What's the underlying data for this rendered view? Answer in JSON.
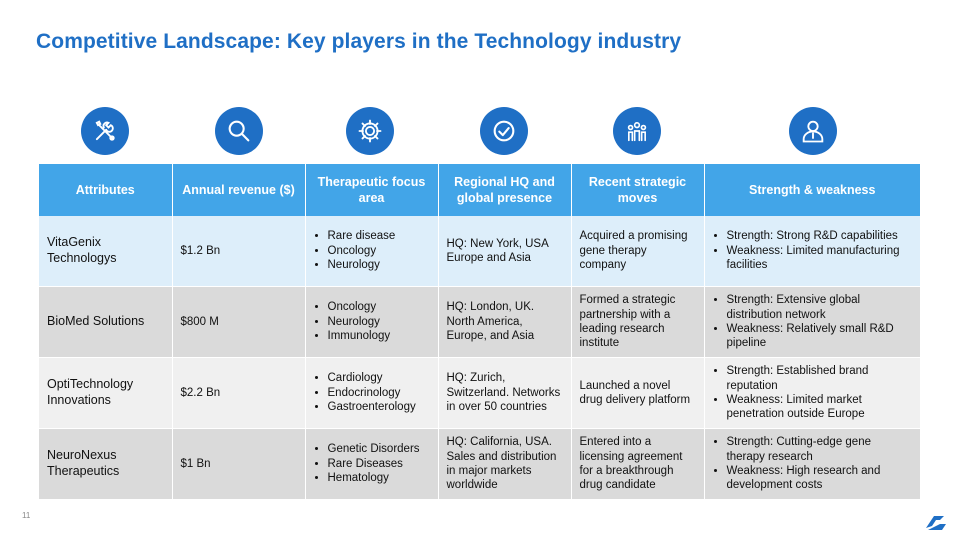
{
  "title": "Competitive Landscape: Key players in the Technology industry",
  "icons": [
    "tools-icon",
    "search-icon",
    "gear-icon",
    "check-circle-icon",
    "team-icon",
    "user-icon"
  ],
  "colors": {
    "accent": "#1f6fc5",
    "header": "#42a5e8",
    "row_blue": "#ddeefa",
    "row_gray": "#dadada",
    "row_light": "#f0f0f0"
  },
  "table": {
    "headers": [
      "Attributes",
      "Annual revenue ($)",
      "Therapeutic focus area",
      "Regional HQ and global presence",
      "Recent strategic moves",
      "Strength & weakness"
    ],
    "rows": [
      {
        "company": "VitaGenix Technologys",
        "revenue": "$1.2 Bn",
        "focus": [
          "Rare disease",
          "Oncology",
          "Neurology"
        ],
        "hq": "HQ: New York, USA Europe and Asia",
        "moves": "Acquired a promising gene therapy company",
        "sw": [
          "Strength: Strong R&D capabilities",
          "Weakness: Limited manufacturing facilities"
        ]
      },
      {
        "company": "BioMed Solutions",
        "revenue": "$800 M",
        "focus": [
          "Oncology",
          "Neurology",
          "Immunology"
        ],
        "hq": "HQ: London, UK. North America, Europe, and Asia",
        "moves": "Formed a strategic partnership with a leading research institute",
        "sw": [
          "Strength: Extensive global distribution network",
          "Weakness: Relatively small R&D pipeline"
        ]
      },
      {
        "company": "OptiTechnology Innovations",
        "revenue": "$2.2 Bn",
        "focus": [
          "Cardiology",
          "Endocrinology",
          "Gastroenterology"
        ],
        "hq": "HQ: Zurich, Switzerland. Networks in over 50 countries",
        "moves": "Launched a novel drug delivery platform",
        "sw": [
          "Strength: Established brand reputation",
          "Weakness: Limited market penetration outside Europe"
        ]
      },
      {
        "company": "NeuroNexus Therapeutics",
        "revenue": "$1 Bn",
        "focus": [
          "Genetic Disorders",
          "Rare Diseases",
          "Hematology"
        ],
        "hq": "HQ: California, USA. Sales and distribution in major markets worldwide",
        "moves": "Entered into a licensing agreement for a breakthrough drug candidate",
        "sw": [
          "Strength: Cutting-edge gene therapy research",
          "Weakness: High research and development costs"
        ]
      }
    ]
  },
  "page_number": "11"
}
